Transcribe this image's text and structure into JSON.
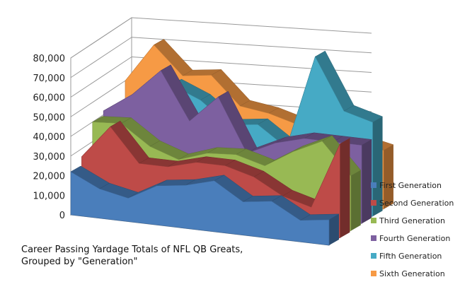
{
  "chart_data": {
    "type": "area",
    "title": "Career Passing Yardage Totals of NFL QB Greats,\nGrouped by \"Generation\"",
    "xlabel": "",
    "ylabel": "",
    "ylim": [
      0,
      80000
    ],
    "yticks": [
      "0",
      "10,000",
      "20,000",
      "30,000",
      "40,000",
      "50,000",
      "60,000",
      "70,000",
      "80,000"
    ],
    "grid": true,
    "legend_position": "right",
    "series": [
      {
        "name": "First Generation",
        "color": "#4a7ebb",
        "values": [
          22000,
          15000,
          12000,
          20000,
          22000,
          26000,
          17000,
          19000,
          11000,
          13000
        ]
      },
      {
        "name": "Second Generation",
        "color": "#be4b48",
        "values": [
          26000,
          43000,
          26000,
          26000,
          30000,
          30000,
          26000,
          18000,
          14000,
          48000
        ]
      },
      {
        "name": "Third Generation",
        "color": "#98b954",
        "values": [
          40000,
          41000,
          31000,
          26000,
          31000,
          32000,
          28000,
          37000,
          44000,
          28000
        ]
      },
      {
        "name": "Fourth Generation",
        "color": "#7d60a0",
        "values": [
          42000,
          52000,
          66000,
          42000,
          56000,
          29000,
          36000,
          40000,
          40000,
          40000
        ]
      },
      {
        "name": "Fifth Generation",
        "color": "#46aac5",
        "values": [
          40000,
          47000,
          55000,
          49000,
          38000,
          40000,
          30000,
          78000,
          52000,
          48000
        ]
      },
      {
        "name": "Sixth Generation",
        "color": "#f69a45",
        "values": [
          50000,
          70000,
          56000,
          58000,
          44000,
          42000,
          38000,
          47000,
          33000,
          30000
        ]
      }
    ]
  }
}
